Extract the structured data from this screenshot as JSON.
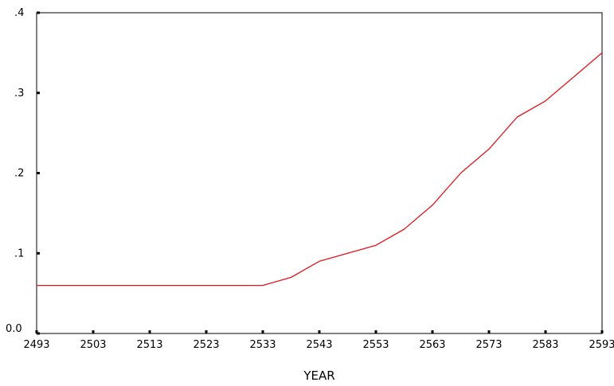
{
  "chart_data": {
    "type": "line",
    "title": "",
    "xlabel": "YEAR",
    "ylabel": "",
    "xlim": [
      2493,
      2593
    ],
    "ylim": [
      0,
      0.4
    ],
    "x_ticks": [
      2493,
      2503,
      2513,
      2523,
      2533,
      2543,
      2553,
      2563,
      2573,
      2583,
      2593
    ],
    "y_ticks": [
      {
        "value": 0.0,
        "label": "0.0"
      },
      {
        "value": 0.1,
        "label": ".1"
      },
      {
        "value": 0.2,
        "label": ".2"
      },
      {
        "value": 0.3,
        "label": ".3"
      },
      {
        "value": 0.4,
        "label": ".4"
      }
    ],
    "grid": false,
    "legend": "none",
    "series": [
      {
        "color": "#e0151b",
        "x": [
          2493,
          2498,
          2503,
          2508,
          2513,
          2518,
          2523,
          2528,
          2533,
          2538,
          2543,
          2548,
          2553,
          2558,
          2563,
          2568,
          2573,
          2578,
          2583,
          2588,
          2593
        ],
        "values": [
          0.06,
          0.06,
          0.06,
          0.06,
          0.06,
          0.06,
          0.06,
          0.06,
          0.06,
          0.07,
          0.09,
          0.1,
          0.11,
          0.13,
          0.16,
          0.2,
          0.23,
          0.27,
          0.29,
          0.32,
          0.35
        ]
      }
    ]
  }
}
